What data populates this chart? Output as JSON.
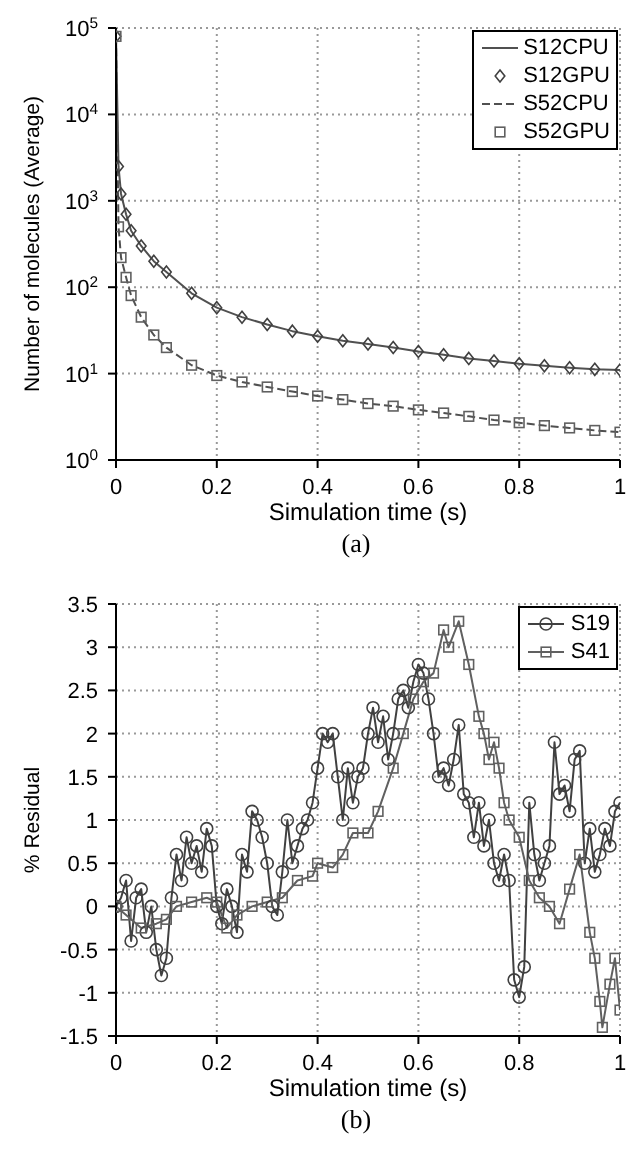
{
  "chart_data": [
    {
      "type": "line",
      "log": "y",
      "xlabel": "Simulation time (s)",
      "ylabel": "Number of molecules (Average)",
      "annotations": [
        "(a)"
      ],
      "grid": true,
      "legend": "top right",
      "xlim": [
        0,
        1
      ],
      "xticks": [
        0,
        0.2,
        0.4,
        0.6,
        0.8,
        1
      ],
      "ylim": [
        1,
        100000
      ],
      "yticks": [
        {
          "value": 1,
          "label": "10$^{0}$"
        },
        {
          "value": 10,
          "label": "10$^{1}$"
        },
        {
          "value": 100,
          "label": "10$^{2}$"
        },
        {
          "value": 1000,
          "label": "10$^{3}$"
        },
        {
          "value": 10000,
          "label": "10$^{4}$"
        },
        {
          "value": 100000,
          "label": "10$^{5}$"
        }
      ],
      "x": [
        0,
        0.005,
        0.01,
        0.02,
        0.03,
        0.05,
        0.075,
        0.1,
        0.15,
        0.2,
        0.25,
        0.3,
        0.35,
        0.4,
        0.45,
        0.5,
        0.55,
        0.6,
        0.65,
        0.7,
        0.75,
        0.8,
        0.85,
        0.9,
        0.95,
        1
      ],
      "series": [
        {
          "name": "S12CPU",
          "line_style": "solid",
          "marker": "none",
          "color": "#505050",
          "values": [
            80000,
            2500,
            1200,
            700,
            450,
            300,
            200,
            150,
            85,
            58,
            45,
            37,
            31,
            27,
            24,
            22,
            20,
            18,
            16.5,
            15,
            14,
            13,
            12.3,
            11.7,
            11.2,
            11
          ]
        },
        {
          "name": "S12GPU",
          "type": "scatter",
          "marker": "diamond",
          "color": "#404040",
          "values": [
            80000,
            2500,
            1200,
            700,
            450,
            300,
            200,
            150,
            85,
            58,
            45,
            37,
            31,
            27,
            24,
            22,
            20,
            18,
            16.5,
            15,
            14,
            13,
            12.3,
            11.7,
            11.2,
            11
          ]
        },
        {
          "name": "S52CPU",
          "line_style": "dashed",
          "marker": "none",
          "color": "#505050",
          "values": [
            80000,
            500,
            220,
            130,
            80,
            45,
            28,
            20,
            12.5,
            9.5,
            8,
            7,
            6.2,
            5.5,
            5,
            4.5,
            4.2,
            3.8,
            3.5,
            3.2,
            2.9,
            2.7,
            2.5,
            2.35,
            2.2,
            2.1
          ]
        },
        {
          "name": "S52GPU",
          "type": "scatter",
          "marker": "square",
          "color": "#606060",
          "values": [
            80000,
            500,
            220,
            130,
            80,
            45,
            28,
            20,
            12.5,
            9.5,
            8,
            7,
            6.2,
            5.5,
            5,
            4.5,
            4.2,
            3.8,
            3.5,
            3.2,
            2.9,
            2.7,
            2.5,
            2.35,
            2.2,
            2.1
          ]
        }
      ]
    },
    {
      "type": "line",
      "xlabel": "Simulation time (s)",
      "ylabel": "% Residual",
      "annotations": [
        "(b)"
      ],
      "grid": true,
      "legend": "top right",
      "xlim": [
        0,
        1
      ],
      "xticks": [
        0,
        0.2,
        0.4,
        0.6,
        0.8,
        1
      ],
      "ylim": [
        -1.5,
        3.5
      ],
      "yticks": [
        -1.5,
        -1,
        -0.5,
        0,
        0.5,
        1,
        1.5,
        2,
        2.5,
        3,
        3.5
      ],
      "series": [
        {
          "name": "S19",
          "line_style": "solid",
          "marker": "circle",
          "color": "#404040",
          "x": [
            0,
            0.01,
            0.02,
            0.03,
            0.04,
            0.05,
            0.06,
            0.07,
            0.08,
            0.09,
            0.1,
            0.11,
            0.12,
            0.13,
            0.14,
            0.15,
            0.16,
            0.17,
            0.18,
            0.19,
            0.2,
            0.21,
            0.22,
            0.23,
            0.24,
            0.25,
            0.26,
            0.27,
            0.28,
            0.29,
            0.3,
            0.31,
            0.32,
            0.33,
            0.34,
            0.35,
            0.36,
            0.37,
            0.38,
            0.39,
            0.4,
            0.41,
            0.42,
            0.43,
            0.44,
            0.45,
            0.46,
            0.47,
            0.48,
            0.49,
            0.5,
            0.51,
            0.52,
            0.53,
            0.54,
            0.55,
            0.56,
            0.57,
            0.58,
            0.59,
            0.6,
            0.61,
            0.62,
            0.63,
            0.64,
            0.65,
            0.66,
            0.67,
            0.68,
            0.69,
            0.7,
            0.71,
            0.72,
            0.73,
            0.74,
            0.75,
            0.76,
            0.77,
            0.78,
            0.79,
            0.8,
            0.81,
            0.82,
            0.83,
            0.84,
            0.85,
            0.86,
            0.87,
            0.88,
            0.89,
            0.9,
            0.91,
            0.92,
            0.93,
            0.94,
            0.95,
            0.96,
            0.97,
            0.98,
            0.99,
            1
          ],
          "values": [
            0,
            0.1,
            0.3,
            -0.4,
            0.1,
            0.2,
            -0.3,
            0,
            -0.5,
            -0.8,
            -0.6,
            0.1,
            0.6,
            0.3,
            0.8,
            0.5,
            0.7,
            0.4,
            0.9,
            0.7,
            0,
            -0.2,
            0.2,
            0,
            -0.3,
            0.6,
            0.4,
            1.1,
            1,
            0.8,
            0.5,
            0,
            -0.1,
            0.4,
            1,
            0.5,
            0.7,
            0.9,
            1,
            1.2,
            1.6,
            2,
            1.9,
            2,
            1.5,
            1,
            1.6,
            1.2,
            1.5,
            1.6,
            2,
            2.3,
            1.9,
            2.2,
            1.7,
            2,
            2.4,
            2.5,
            2.3,
            2.6,
            2.8,
            2.7,
            2.4,
            2,
            1.5,
            1.6,
            1.4,
            1.7,
            2.1,
            1.3,
            1.2,
            0.8,
            1.2,
            0.7,
            1,
            0.5,
            0.3,
            0.6,
            0.3,
            -0.85,
            -1.05,
            -0.7,
            1.2,
            0.6,
            0.3,
            0.5,
            0.7,
            1.9,
            1.3,
            1.4,
            1.1,
            1.7,
            1.8,
            0.5,
            0.9,
            0.4,
            0.6,
            0.9,
            0.7,
            1.1,
            1.2
          ]
        },
        {
          "name": "S41",
          "line_style": "solid",
          "marker": "square",
          "color": "#606060",
          "x": [
            0,
            0.02,
            0.05,
            0.08,
            0.1,
            0.12,
            0.15,
            0.18,
            0.2,
            0.22,
            0.24,
            0.27,
            0.3,
            0.33,
            0.36,
            0.39,
            0.4,
            0.43,
            0.45,
            0.47,
            0.5,
            0.52,
            0.55,
            0.57,
            0.59,
            0.61,
            0.63,
            0.65,
            0.66,
            0.68,
            0.7,
            0.72,
            0.73,
            0.74,
            0.75,
            0.76,
            0.77,
            0.78,
            0.8,
            0.82,
            0.84,
            0.86,
            0.88,
            0.9,
            0.92,
            0.94,
            0.95,
            0.96,
            0.965,
            0.98,
            0.99,
            1
          ],
          "values": [
            0,
            -0.1,
            -0.25,
            -0.2,
            -0.15,
            0,
            0.05,
            0.1,
            0.05,
            -0.25,
            -0.1,
            0,
            0.05,
            0.1,
            0.3,
            0.35,
            0.5,
            0.45,
            0.6,
            0.85,
            0.85,
            1.1,
            1.6,
            2,
            2.4,
            2.6,
            2.7,
            3.2,
            3,
            3.3,
            2.8,
            2.2,
            2,
            1.7,
            1.9,
            1.6,
            1.2,
            1,
            0.8,
            0.3,
            0.1,
            0,
            -0.2,
            0.2,
            0.6,
            -0.3,
            -0.6,
            -1.1,
            -1.4,
            -0.9,
            -0.6,
            -1.2
          ]
        }
      ]
    }
  ]
}
